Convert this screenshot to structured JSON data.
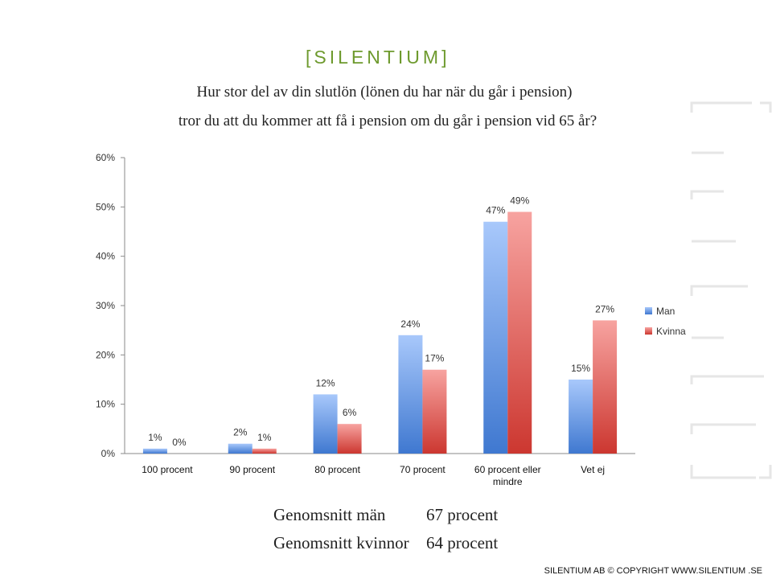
{
  "brand": {
    "logo_text": "[SILENTIUM]"
  },
  "title_lines": [
    "Hur stor del av din slutlön (lönen du har när du går i pension)",
    "tror du att du kommer att få i pension om du går i pension vid 65 år?"
  ],
  "chart_data": {
    "type": "bar",
    "categories": [
      "100 procent",
      "90 procent",
      "80 procent",
      "70 procent",
      "60 procent eller mindre",
      "Vet ej"
    ],
    "category_lines": [
      [
        "100 procent"
      ],
      [
        "90 procent"
      ],
      [
        "80 procent"
      ],
      [
        "70 procent"
      ],
      [
        "60 procent eller",
        "mindre"
      ],
      [
        "Vet ej"
      ]
    ],
    "series": [
      {
        "name": "Man",
        "values": [
          1,
          2,
          12,
          24,
          47,
          15
        ],
        "labels": [
          "1%",
          "2%",
          "12%",
          "24%",
          "47%",
          "15%"
        ],
        "color": "#5b8fd9"
      },
      {
        "name": "Kvinna",
        "values": [
          0,
          1,
          6,
          17,
          49,
          27
        ],
        "labels": [
          "0%",
          "1%",
          "6%",
          "17%",
          "49%",
          "27%"
        ],
        "color": "#d9443d"
      }
    ],
    "ylim": [
      0,
      60
    ],
    "yticks": [
      "0%",
      "10%",
      "20%",
      "30%",
      "40%",
      "50%",
      "60%"
    ],
    "ytick_values": [
      0,
      10,
      20,
      30,
      40,
      50,
      60
    ],
    "legend_position": "right",
    "grid": false
  },
  "summary": {
    "rows": [
      {
        "label": "Genomsnitt män",
        "value": "67 procent"
      },
      {
        "label": "Genomsnitt kvinnor",
        "value": "64 procent"
      }
    ]
  },
  "footer": {
    "text": "SILENTIUM AB © COPYRIGHT WWW.SILENTIUM .SE"
  }
}
